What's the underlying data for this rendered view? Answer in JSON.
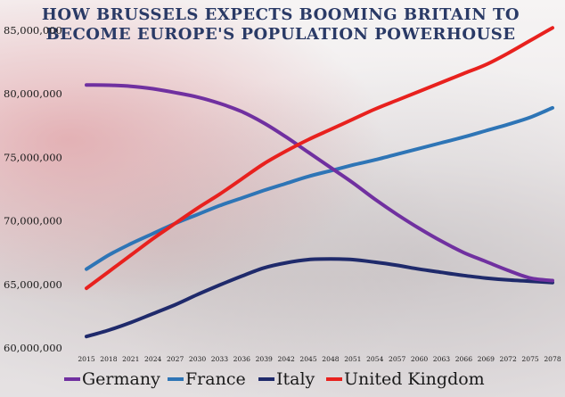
{
  "chart_data": {
    "type": "line",
    "title": "HOW BRUSSELS EXPECTS BOOMING BRITAIN TO BECOME EUROPE'S POPULATION POWERHOUSE",
    "xlabel": "",
    "ylabel": "",
    "ylim": [
      60000000,
      85000000
    ],
    "x": [
      2015,
      2018,
      2021,
      2024,
      2027,
      2030,
      2033,
      2036,
      2039,
      2042,
      2045,
      2048,
      2051,
      2054,
      2057,
      2060,
      2063,
      2066,
      2069,
      2072,
      2075,
      2078
    ],
    "y_ticks": [
      {
        "value": 60000000,
        "label": "60,000,000"
      },
      {
        "value": 65000000,
        "label": "65,000,000"
      },
      {
        "value": 70000000,
        "label": "70,000,000"
      },
      {
        "value": 75000000,
        "label": "75,000,000"
      },
      {
        "value": 80000000,
        "label": "80,000,000"
      },
      {
        "value": 85000000,
        "label": "85,000,000"
      }
    ],
    "x_tick_labels": [
      "2015",
      "2018",
      "2021",
      "2024",
      "2027",
      "2030",
      "2033",
      "2036",
      "2039",
      "2042",
      "2045",
      "2048",
      "2051",
      "2054",
      "2057",
      "2060",
      "2063",
      "2066",
      "2069",
      "2072",
      "2075",
      "2078"
    ],
    "legend_position": "bottom",
    "grid": false,
    "series": [
      {
        "name": "Germany",
        "color": "#7030a0",
        "values": [
          80700000,
          80680000,
          80600000,
          80400000,
          80100000,
          79750000,
          79250000,
          78600000,
          77700000,
          76600000,
          75400000,
          74200000,
          73000000,
          71700000,
          70500000,
          69400000,
          68400000,
          67500000,
          66800000,
          66100000,
          65500000,
          65300000
        ]
      },
      {
        "name": "France",
        "color": "#2e75b6",
        "values": [
          66200000,
          67300000,
          68200000,
          69000000,
          69800000,
          70500000,
          71200000,
          71800000,
          72400000,
          72950000,
          73500000,
          73950000,
          74400000,
          74800000,
          75250000,
          75700000,
          76150000,
          76600000,
          77100000,
          77600000,
          78150000,
          78900000
        ]
      },
      {
        "name": "Italy",
        "color": "#1f2a6b",
        "values": [
          60900000,
          61400000,
          62000000,
          62700000,
          63400000,
          64200000,
          64950000,
          65650000,
          66300000,
          66700000,
          66950000,
          67000000,
          66950000,
          66750000,
          66500000,
          66200000,
          65950000,
          65700000,
          65500000,
          65350000,
          65250000,
          65150000
        ]
      },
      {
        "name": "United Kingdom",
        "color": "#e8211e",
        "values": [
          64700000,
          66000000,
          67300000,
          68600000,
          69800000,
          71000000,
          72100000,
          73300000,
          74500000,
          75500000,
          76400000,
          77200000,
          78000000,
          78800000,
          79500000,
          80200000,
          80900000,
          81600000,
          82300000,
          83200000,
          84200000,
          85200000
        ]
      }
    ]
  }
}
